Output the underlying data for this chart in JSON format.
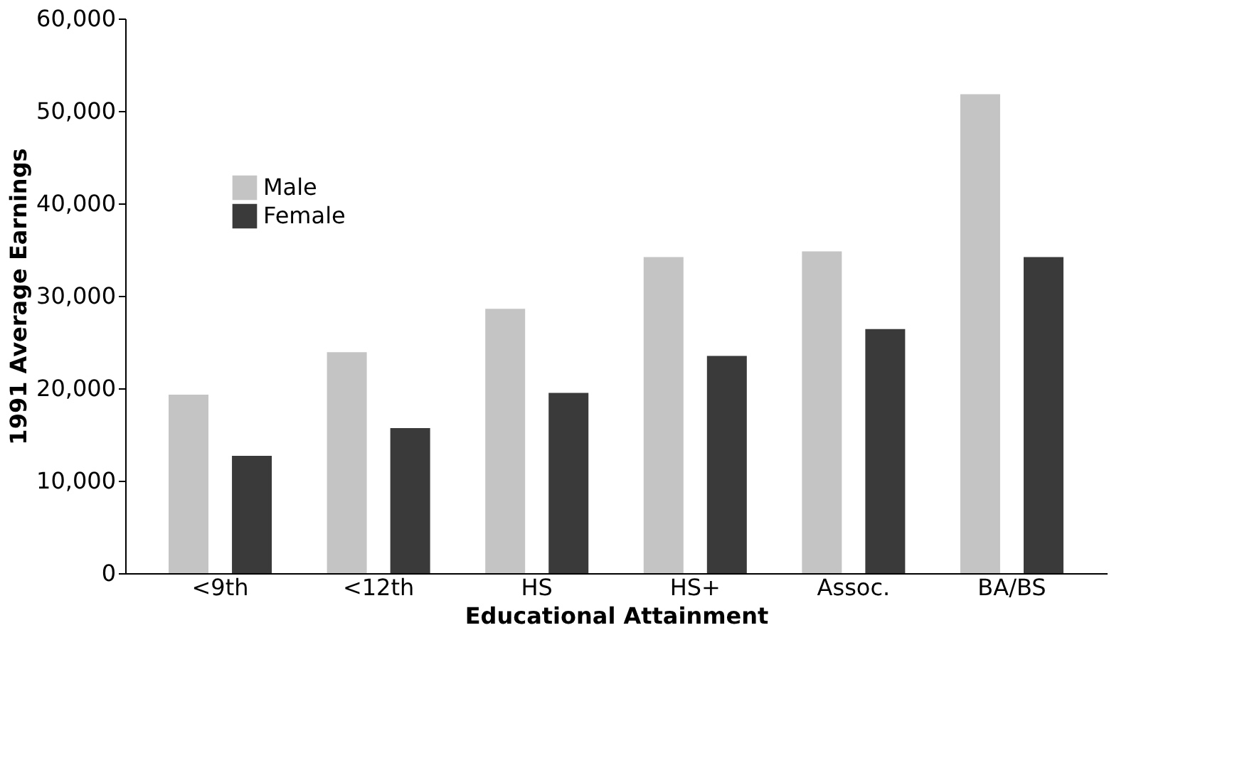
{
  "chart_data": {
    "type": "bar",
    "xlabel": "Educational Attainment",
    "ylabel": "1991 Average Earnings",
    "categories": [
      "<9th",
      "<12th",
      "HS",
      "HS+",
      "Assoc.",
      "BA/BS"
    ],
    "series": [
      {
        "name": "Male",
        "color": "#c4c4c4",
        "values": [
          19300,
          23900,
          28600,
          34200,
          34800,
          51800
        ]
      },
      {
        "name": "Female",
        "color": "#3a3a3a",
        "values": [
          12700,
          15700,
          19500,
          23500,
          26400,
          34200
        ]
      }
    ],
    "ylim": [
      0,
      60000
    ],
    "yticks": [
      0,
      {
        "value": 10000,
        "label": "10,000"
      },
      {
        "value": 20000,
        "label": "20,000"
      },
      {
        "value": 30000,
        "label": "30,000"
      },
      {
        "value": 40000,
        "label": "40,000"
      },
      {
        "value": 50000,
        "label": "50,000"
      },
      {
        "value": 60000,
        "label": "60,000"
      }
    ],
    "grid": false,
    "legend": "top left"
  }
}
